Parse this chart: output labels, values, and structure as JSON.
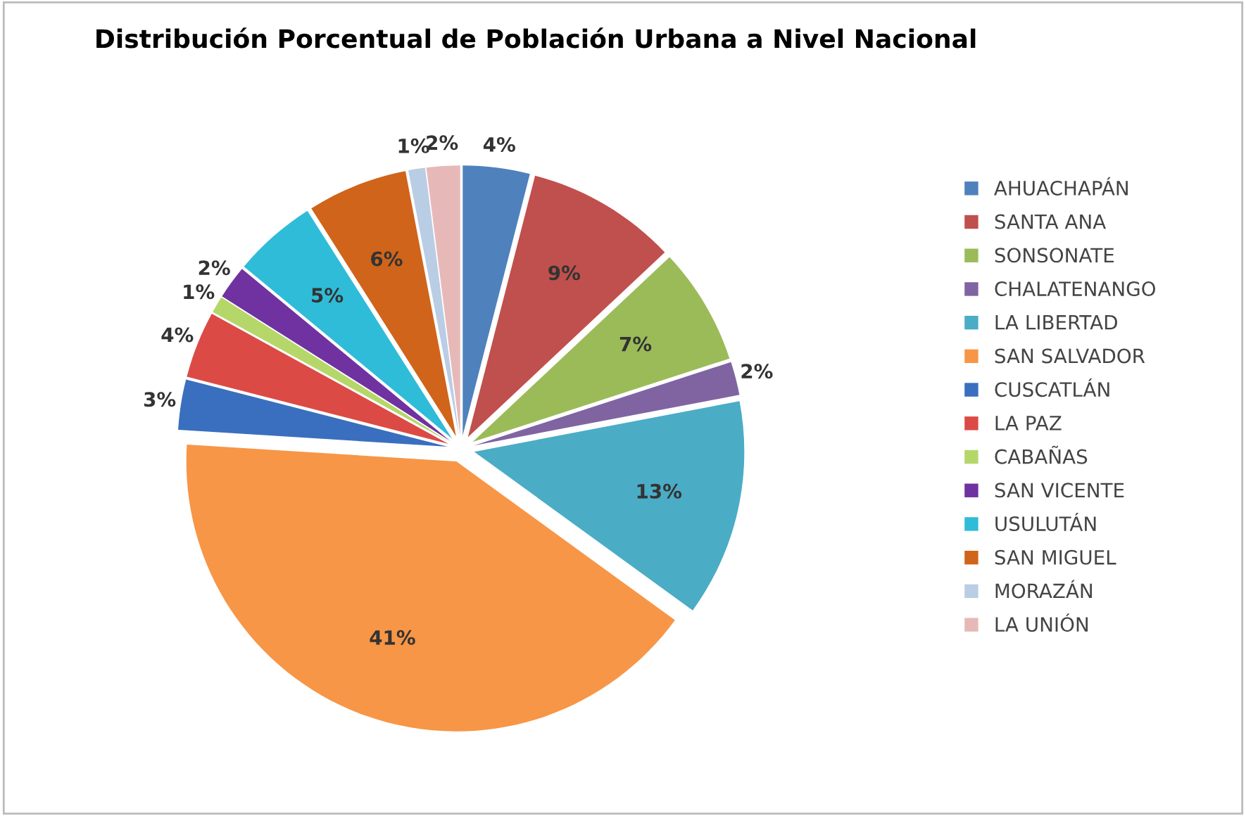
{
  "chart_data": {
    "type": "pie",
    "title": "Distribución Porcentual de Población Urbana a Nivel Nacional",
    "categories": [
      "AHUACHAPÁN",
      "SANTA ANA",
      "SONSONATE",
      "CHALATENANGO",
      "LA LIBERTAD",
      "SAN SALVADOR",
      "CUSCATLÁN",
      "LA PAZ",
      "CABAÑAS",
      "SAN VICENTE",
      "USULUTÁN",
      "SAN MIGUEL",
      "MORAZÁN",
      "LA UNIÓN"
    ],
    "values": [
      4,
      9,
      7,
      2,
      13,
      41,
      3,
      4,
      1,
      2,
      5,
      6,
      1,
      2
    ],
    "value_labels": [
      "4%",
      "9%",
      "7%",
      "2%",
      "13%",
      "41%",
      "3%",
      "4%",
      "1%",
      "2%",
      "5%",
      "6%",
      "1%",
      "2%"
    ],
    "colors": [
      "#4f81bd",
      "#c0504d",
      "#9bbb59",
      "#8064a2",
      "#4bacc6",
      "#f79646",
      "#3a6fbf",
      "#dc4a46",
      "#b5d76a",
      "#7032a0",
      "#2fbcd8",
      "#d0641a",
      "#b9cde5",
      "#e6b9b8"
    ],
    "legend": "right"
  }
}
